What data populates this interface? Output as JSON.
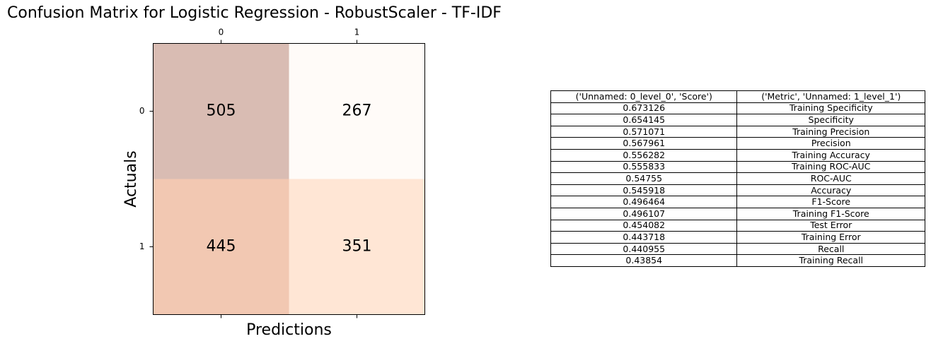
{
  "chart_data": [
    {
      "type": "heatmap",
      "title": "Confusion Matrix for Logistic Regression - RobustScaler - TF-IDF",
      "xlabel": "Predictions",
      "ylabel": "Actuals",
      "x_ticks": [
        "0",
        "1"
      ],
      "y_ticks": [
        "0",
        "1"
      ],
      "values": [
        [
          505,
          267
        ],
        [
          445,
          351
        ]
      ],
      "cell_colors": [
        [
          "#d9bcb3",
          "#fffbf8"
        ],
        [
          "#f2c8b2",
          "#ffe6d5"
        ]
      ],
      "grid": false
    },
    {
      "type": "table",
      "columns": [
        "('Unnamed: 0_level_0', 'Score')",
        "('Metric', 'Unnamed: 1_level_1')"
      ],
      "rows": [
        [
          "0.673126",
          "Training Specificity"
        ],
        [
          "0.654145",
          "Specificity"
        ],
        [
          "0.571071",
          "Training Precision"
        ],
        [
          "0.567961",
          "Precision"
        ],
        [
          "0.556282",
          "Training Accuracy"
        ],
        [
          "0.555833",
          "Training ROC-AUC"
        ],
        [
          "0.54755",
          "ROC-AUC"
        ],
        [
          "0.545918",
          "Accuracy"
        ],
        [
          "0.496464",
          "F1-Score"
        ],
        [
          "0.496107",
          "Training F1-Score"
        ],
        [
          "0.454082",
          "Test Error"
        ],
        [
          "0.443718",
          "Training Error"
        ],
        [
          "0.440955",
          "Recall"
        ],
        [
          "0.43854",
          "Training Recall"
        ]
      ]
    }
  ]
}
